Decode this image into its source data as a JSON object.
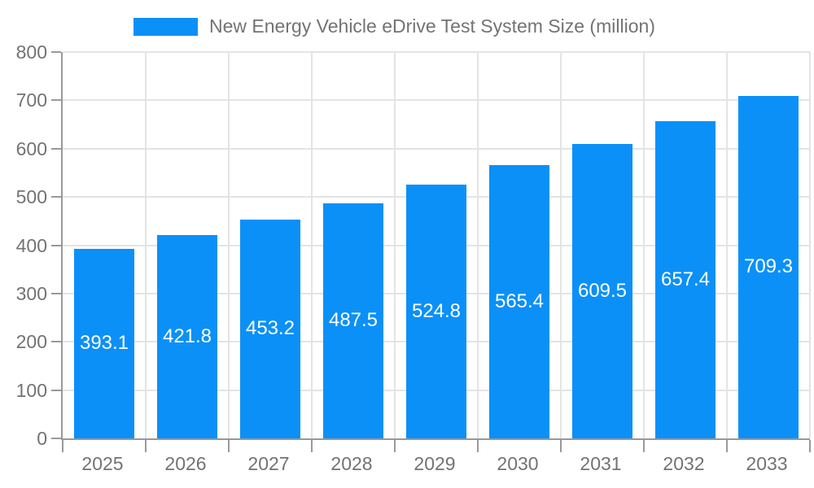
{
  "legend": {
    "label": "New Energy Vehicle eDrive Test System Size (million)"
  },
  "colors": {
    "bar": "#0b90f8",
    "grid_line": "#e4e4e4",
    "axis_line": "#999999",
    "tick_label": "#737373",
    "value_label": "#ffffff",
    "background": "#ffffff"
  },
  "chart_data": {
    "type": "bar",
    "title": "New Energy Vehicle eDrive Test System Size (million)",
    "categories": [
      "2025",
      "2026",
      "2027",
      "2028",
      "2029",
      "2030",
      "2031",
      "2032",
      "2033"
    ],
    "values": [
      393.1,
      421.8,
      453.2,
      487.5,
      524.8,
      565.4,
      609.5,
      657.4,
      709.3
    ],
    "xlabel": "",
    "ylabel": "",
    "ylim": [
      0,
      800
    ],
    "yticks": [
      0,
      100,
      200,
      300,
      400,
      500,
      600,
      700,
      800
    ],
    "grid": true,
    "legend_position": "top",
    "value_labels": "inside-center"
  }
}
